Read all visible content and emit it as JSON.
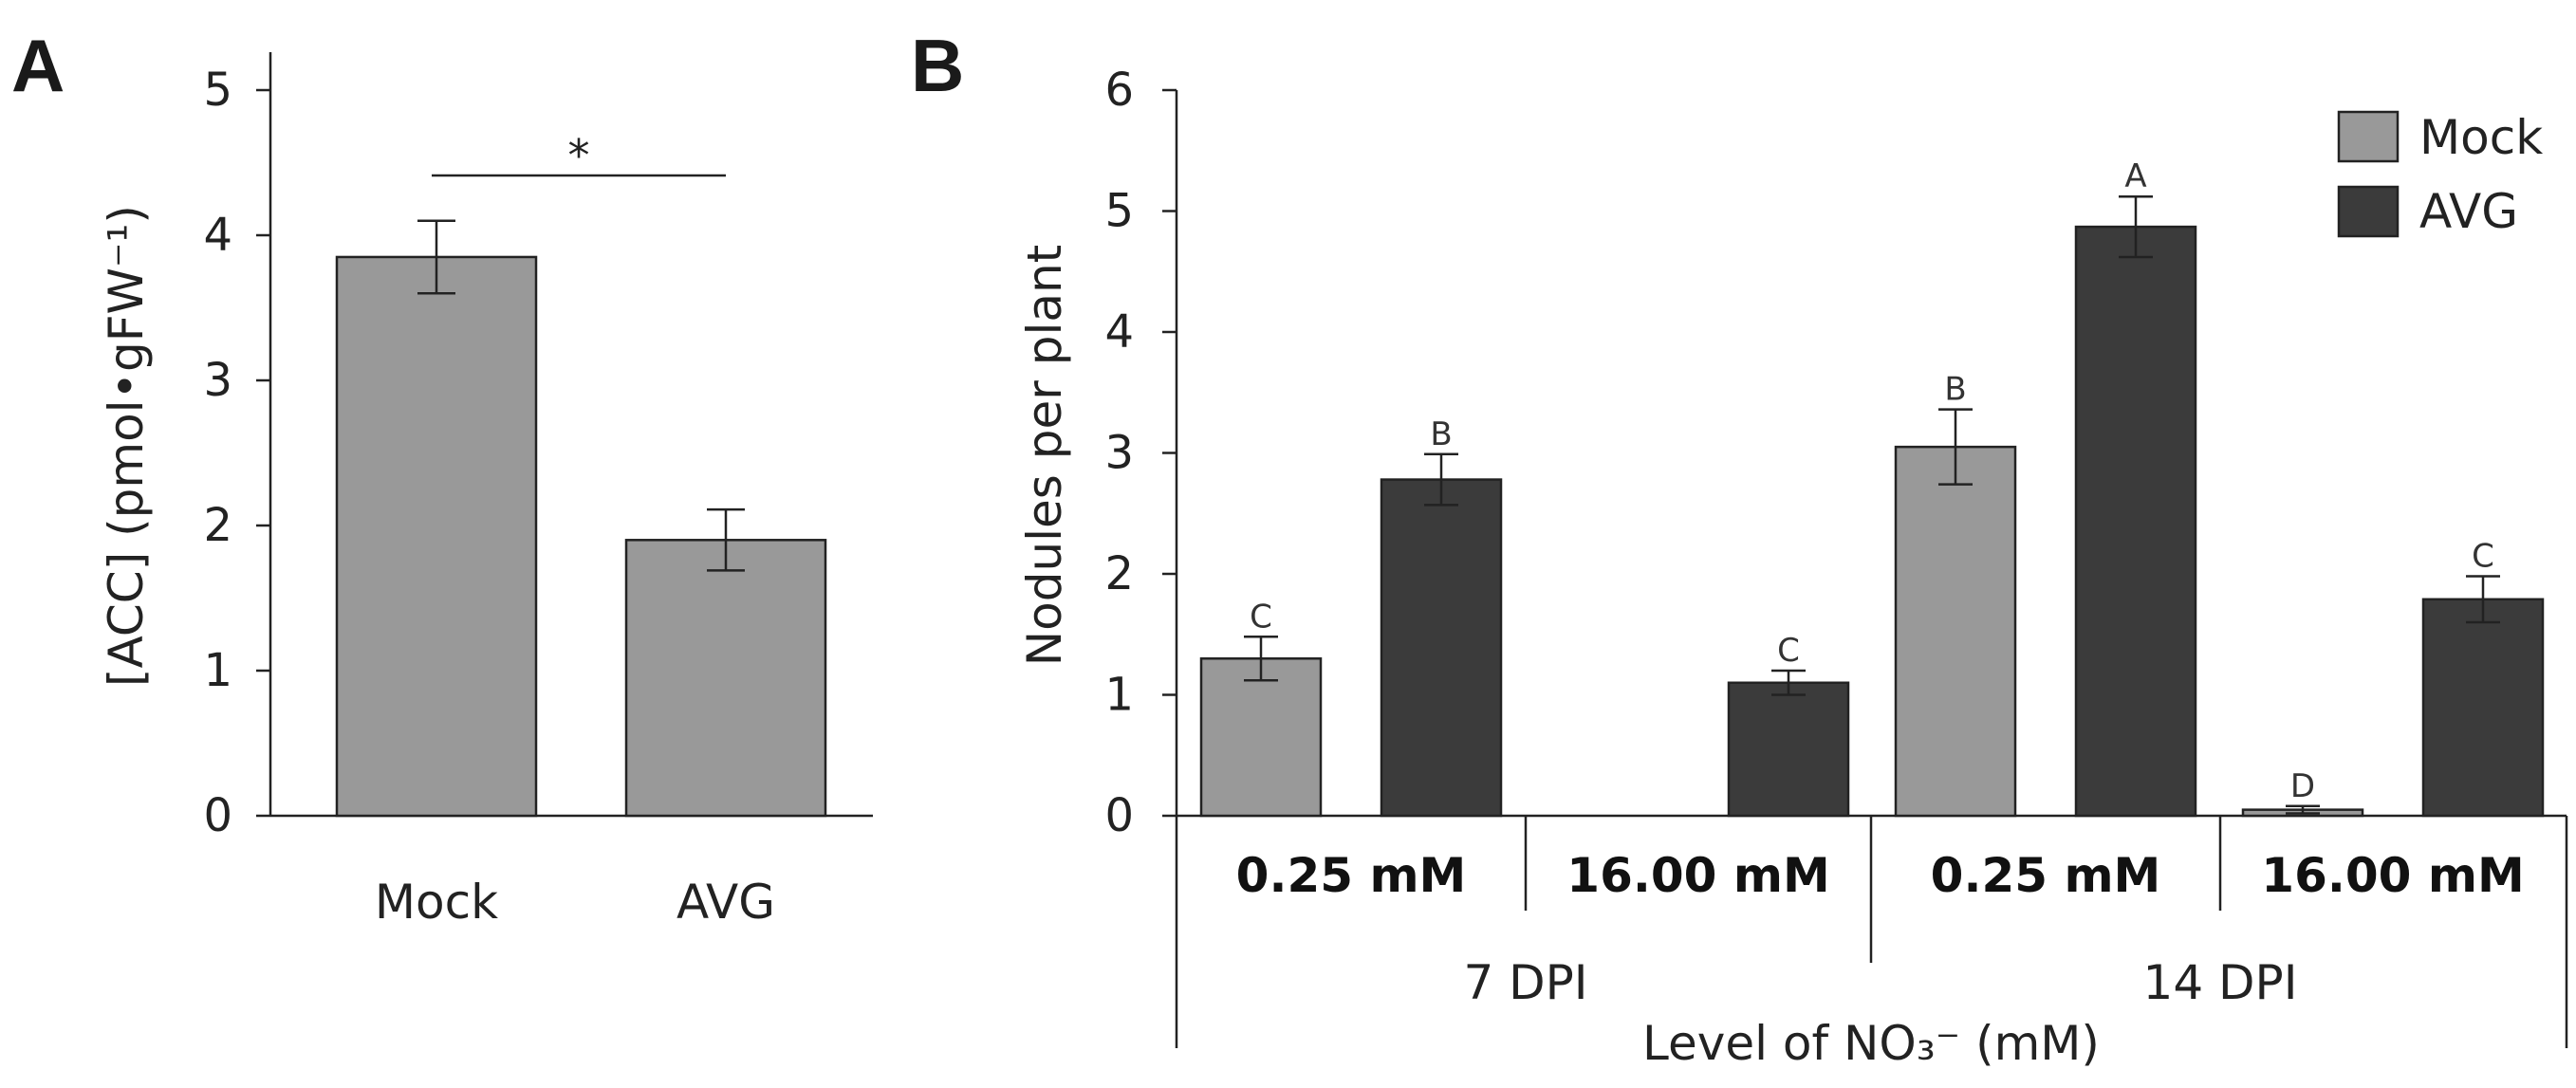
{
  "chart_data": [
    {
      "panel": "A",
      "type": "bar",
      "ylabel": "[ACC] (pmol•gFW⁻¹)",
      "ylim": [
        0,
        5
      ],
      "yticks": [
        "0",
        "1",
        "2",
        "3",
        "4",
        "5"
      ],
      "categories": [
        "Mock",
        "AVG"
      ],
      "values": [
        3.85,
        1.9
      ],
      "errors": [
        0.25,
        0.21
      ],
      "significance": "*",
      "colors": {
        "mock": "#999999",
        "avg": "#999999"
      }
    },
    {
      "panel": "B",
      "type": "bar",
      "ylabel": "Nodules per plant",
      "ylim": [
        0,
        6
      ],
      "yticks": [
        "0",
        "1",
        "2",
        "3",
        "4",
        "5",
        "6"
      ],
      "xlabel": "Level of NO₃⁻ (mM)",
      "legend": {
        "position": "top-right",
        "entries": [
          "Mock",
          "AVG"
        ]
      },
      "groups": [
        {
          "concentration": "0.25 mM",
          "dpi": "7 DPI",
          "mock": 1.3,
          "mock_err": 0.18,
          "mock_letter": "C",
          "avg": 2.78,
          "avg_err": 0.21,
          "avg_letter": "B"
        },
        {
          "concentration": "16.00 mM",
          "dpi": "7 DPI",
          "mock": null,
          "mock_err": null,
          "mock_letter": "",
          "avg": 1.1,
          "avg_err": 0.1,
          "avg_letter": "C"
        },
        {
          "concentration": "0.25 mM",
          "dpi": "14 DPI",
          "mock": 3.05,
          "mock_err": 0.31,
          "mock_letter": "B",
          "avg": 4.87,
          "avg_err": 0.25,
          "avg_letter": "A"
        },
        {
          "concentration": "16.00 mM",
          "dpi": "14 DPI",
          "mock": 0.05,
          "mock_err": 0.03,
          "mock_letter": "D",
          "avg": 1.79,
          "avg_err": 0.19,
          "avg_letter": "C"
        }
      ],
      "dpi_labels": [
        "7 DPI",
        "14 DPI"
      ],
      "colors": {
        "mock": "#999999",
        "avg": "#3b3b3b"
      }
    }
  ]
}
